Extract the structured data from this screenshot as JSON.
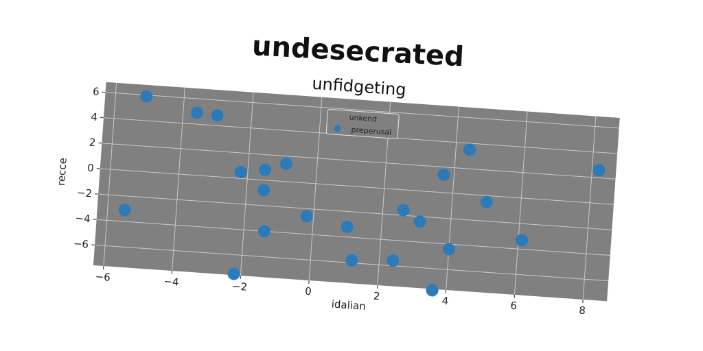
{
  "chart_data": {
    "type": "scatter",
    "suptitle": "undesecrated",
    "title": "unfidgeting",
    "xlabel": "idalian",
    "ylabel": "recce",
    "xlim": [
      -6.3,
      8.7
    ],
    "ylim": [
      -7.6,
      6.8
    ],
    "xticks": [
      -6,
      -4,
      -2,
      0,
      2,
      4,
      6,
      8
    ],
    "yticks": [
      -6,
      -4,
      -2,
      0,
      2,
      4,
      6
    ],
    "grid": true,
    "legend_title": "unkend",
    "legend_position": "upper-center",
    "series": [
      {
        "name": "preperusal",
        "color": "#2b7bba",
        "points": [
          [
            -5.1,
            5.9
          ],
          [
            -3.6,
            4.9
          ],
          [
            -3.0,
            4.8
          ],
          [
            -5.5,
            -3.1
          ],
          [
            -2.2,
            0.5
          ],
          [
            -1.5,
            0.8
          ],
          [
            -0.9,
            1.4
          ],
          [
            -1.5,
            -0.8
          ],
          [
            -1.4,
            -4.0
          ],
          [
            -2.2,
            -7.5
          ],
          [
            -0.2,
            -2.6
          ],
          [
            1.0,
            -3.2
          ],
          [
            1.2,
            -5.8
          ],
          [
            2.4,
            -5.6
          ],
          [
            2.6,
            -1.6
          ],
          [
            3.1,
            -2.4
          ],
          [
            3.7,
            1.4
          ],
          [
            4.4,
            3.5
          ],
          [
            5.0,
            -0.5
          ],
          [
            3.6,
            -7.7
          ],
          [
            4.0,
            -4.4
          ],
          [
            6.1,
            -3.3
          ],
          [
            8.2,
            2.6
          ]
        ]
      }
    ]
  }
}
